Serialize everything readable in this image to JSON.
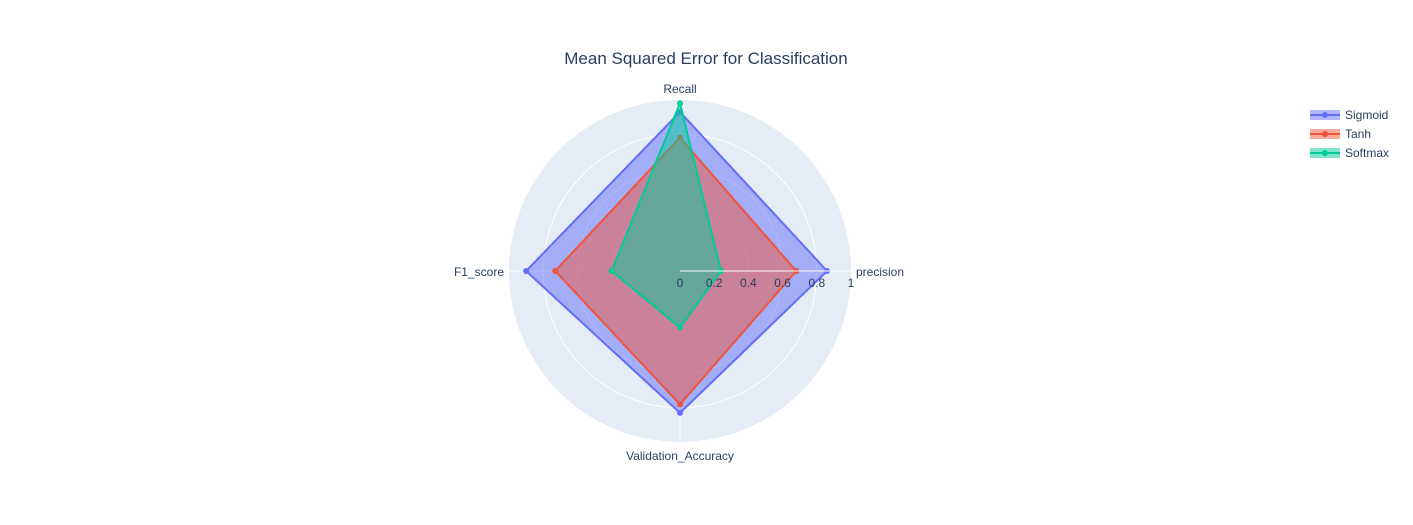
{
  "chart_data": {
    "type": "radar",
    "title": "Mean Squared Error for Classification",
    "categories": [
      "precision",
      "Recall",
      "F1_score",
      "Validation_Accuracy"
    ],
    "radial_range": [
      0,
      1
    ],
    "radial_ticks": [
      "0",
      "0.2",
      "0.4",
      "0.6",
      "0.8",
      "1"
    ],
    "radial_tick_values": [
      0,
      0.2,
      0.4,
      0.6,
      0.8,
      1
    ],
    "grid": true,
    "legend_position": "top-right",
    "series": [
      {
        "name": "Sigmoid",
        "color": "#636efa",
        "values": [
          0.86,
          0.93,
          0.9,
          0.83
        ]
      },
      {
        "name": "Tanh",
        "color": "#ef553b",
        "values": [
          0.68,
          0.78,
          0.73,
          0.78
        ]
      },
      {
        "name": "Softmax",
        "color": "#00cc96",
        "values": [
          0.24,
          0.98,
          0.4,
          0.33
        ]
      }
    ]
  }
}
